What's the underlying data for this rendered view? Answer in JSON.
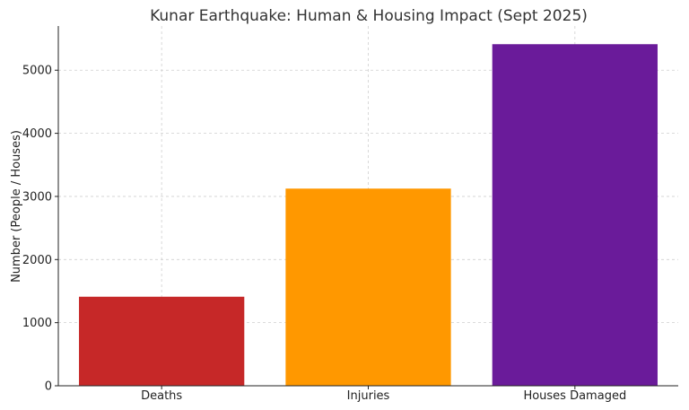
{
  "chart_data": {
    "type": "bar",
    "title": "Kunar Earthquake: Human & Housing Impact (Sept 2025)",
    "xlabel": "",
    "ylabel": "Number (People / Houses)",
    "categories": [
      "Deaths",
      "Injuries",
      "Houses Damaged"
    ],
    "values": [
      1411,
      3124,
      5412
    ],
    "colors": [
      "#c62828",
      "#ff9800",
      "#6a1b9a"
    ],
    "ylim": [
      0,
      5700
    ],
    "yticks": [
      0,
      1000,
      2000,
      3000,
      4000,
      5000
    ],
    "grid": true
  }
}
